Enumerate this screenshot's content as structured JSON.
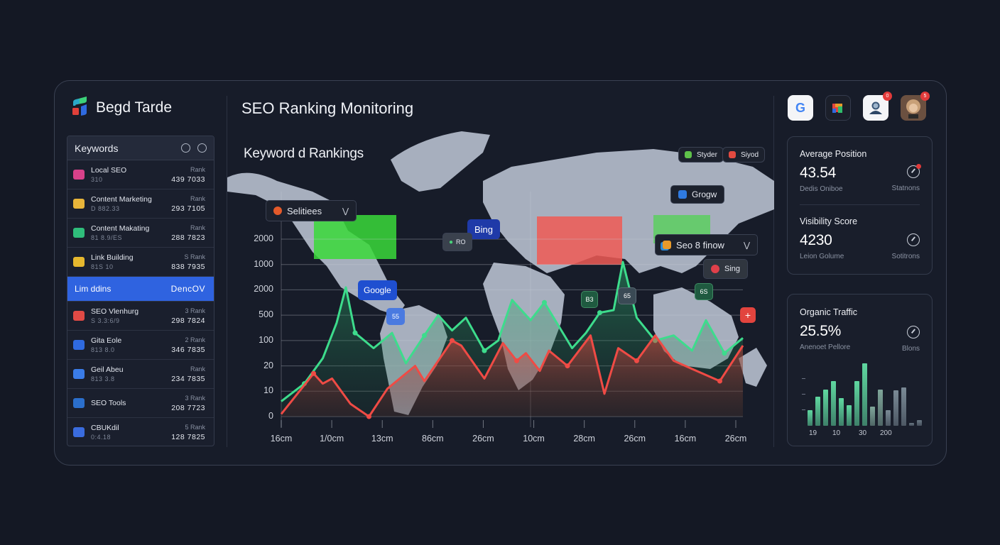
{
  "brand": {
    "name": "Begd Tarde"
  },
  "header": {
    "title": "SEO Ranking Monitoring",
    "icons": [
      {
        "name": "google-app-icon",
        "badge": ""
      },
      {
        "name": "analytics-app-icon",
        "badge": ""
      },
      {
        "name": "user-account-icon",
        "badge": "0"
      },
      {
        "name": "profile-avatar",
        "badge": "5"
      }
    ]
  },
  "keywords_panel": {
    "title": "Keywords",
    "items": [
      {
        "name": "Local SEO",
        "sub": "310",
        "rank_label": "Rank",
        "value": "439 7033",
        "icon_color": "#d8418a"
      },
      {
        "name": "Content Marketing",
        "sub": "D 882.33",
        "rank_label": "Rank",
        "value": "293 7105",
        "icon_color": "#e8b53a"
      },
      {
        "name": "Content Makating",
        "sub": "81 8.9/ES",
        "rank_label": "Rank",
        "value": "288 7823",
        "icon_color": "#2fbd7b"
      },
      {
        "name": "Link Building",
        "sub": "81S 10",
        "rank_label": "S Rank",
        "value": "838 7935",
        "icon_color": "#e6b82e"
      },
      {
        "name": "Lim ddins",
        "sub": "",
        "rank_label": "",
        "value": "DencOV",
        "active": true
      },
      {
        "name": "SEO Vlenhurg",
        "sub": "S 3.3:6/9",
        "rank_label": "3 Rank",
        "value": "298 7824",
        "icon_color": "#e04a45"
      },
      {
        "name": "Gita Eole",
        "sub": "813 8.0",
        "rank_label": "2 Rank",
        "value": "346 7835",
        "icon_color": "#2f6ae0"
      },
      {
        "name": "Geil Abeu",
        "sub": "813 3.8",
        "rank_label": "Rank",
        "value": "234 7835",
        "icon_color": "#3a7ce8"
      },
      {
        "name": "SEO Tools",
        "sub": "",
        "rank_label": "3 Rank",
        "value": "208 7723",
        "icon_color": "#2b6fcc"
      },
      {
        "name": "CBUKdil",
        "sub": "0:4.18",
        "rank_label": "5 Rank",
        "value": "128 7825",
        "icon_color": "#3a6cde"
      }
    ]
  },
  "main": {
    "section_title": "Keyword d Rankings",
    "legend": [
      {
        "label": "Styder",
        "color": "#5fc24a"
      },
      {
        "label": "Siyod",
        "color": "#e24a40"
      }
    ],
    "dropdowns": [
      {
        "label": "Selitiees",
        "icon_color": "#e45a2a"
      },
      {
        "label": "Seo 8 finow",
        "icon_color": "#e89a2a"
      }
    ],
    "map_tags": [
      {
        "label": "Grogw",
        "style": "dark"
      },
      {
        "label": "Bing",
        "style": "navy"
      },
      {
        "label": "RO",
        "style": "dark"
      },
      {
        "label": "Google",
        "style": "blue"
      },
      {
        "label": "Sing",
        "style": "dark"
      },
      {
        "label": "55",
        "style": "blue"
      },
      {
        "label": "B3",
        "style": "green"
      },
      {
        "label": "65",
        "style": "slate"
      },
      {
        "label": "6S",
        "style": "green"
      },
      {
        "label": "+",
        "style": "red"
      }
    ]
  },
  "chart_data": {
    "type": "line",
    "title": "Keyword d Rankings",
    "xlabel": "",
    "ylabel": "",
    "y_tick_labels": [
      "2000",
      "1000",
      "2000",
      "500",
      "100",
      "20",
      "10",
      "0"
    ],
    "x_tick_labels": [
      "16cm",
      "1/0cm",
      "13cm",
      "86cm",
      "26cm",
      "10cm",
      "28cm",
      "26cm",
      "16cm",
      "26cm"
    ],
    "grid": true,
    "series": [
      {
        "name": "Green series",
        "color": "#3ddc8c",
        "points_rank_scale": [
          [
            0,
            0.6
          ],
          [
            0.05,
            1.3
          ],
          [
            0.09,
            2.3
          ],
          [
            0.12,
            3.7
          ],
          [
            0.14,
            5.1
          ],
          [
            0.16,
            3.3
          ],
          [
            0.2,
            2.7
          ],
          [
            0.24,
            3.3
          ],
          [
            0.27,
            2.1
          ],
          [
            0.31,
            3.2
          ],
          [
            0.34,
            4.0
          ],
          [
            0.37,
            3.4
          ],
          [
            0.4,
            3.9
          ],
          [
            0.44,
            2.6
          ],
          [
            0.47,
            3.0
          ],
          [
            0.5,
            4.6
          ],
          [
            0.54,
            3.8
          ],
          [
            0.57,
            4.5
          ],
          [
            0.6,
            3.6
          ],
          [
            0.63,
            2.7
          ],
          [
            0.66,
            3.3
          ],
          [
            0.69,
            4.1
          ],
          [
            0.72,
            4.2
          ],
          [
            0.74,
            6.1
          ],
          [
            0.77,
            3.9
          ],
          [
            0.81,
            3.0
          ],
          [
            0.85,
            3.2
          ],
          [
            0.89,
            2.6
          ],
          [
            0.92,
            3.8
          ],
          [
            0.96,
            2.5
          ],
          [
            1.0,
            3.1
          ]
        ]
      },
      {
        "name": "Red series",
        "color": "#ef4b45",
        "points_rank_scale": [
          [
            0,
            0.1
          ],
          [
            0.07,
            1.7
          ],
          [
            0.09,
            1.3
          ],
          [
            0.11,
            1.5
          ],
          [
            0.15,
            0.5
          ],
          [
            0.19,
            0.0
          ],
          [
            0.23,
            1.1
          ],
          [
            0.29,
            2.0
          ],
          [
            0.31,
            1.4
          ],
          [
            0.37,
            3.0
          ],
          [
            0.39,
            2.8
          ],
          [
            0.44,
            1.5
          ],
          [
            0.48,
            2.9
          ],
          [
            0.51,
            2.2
          ],
          [
            0.53,
            2.5
          ],
          [
            0.56,
            1.8
          ],
          [
            0.58,
            2.6
          ],
          [
            0.62,
            2.0
          ],
          [
            0.67,
            3.2
          ],
          [
            0.7,
            0.9
          ],
          [
            0.73,
            2.7
          ],
          [
            0.77,
            2.2
          ],
          [
            0.81,
            3.2
          ],
          [
            0.85,
            2.2
          ],
          [
            0.9,
            1.8
          ],
          [
            0.95,
            1.4
          ],
          [
            1.0,
            2.8
          ]
        ]
      }
    ],
    "highlight_regions": [
      {
        "label": "North America",
        "color": "#3ed83e"
      },
      {
        "label": "Europe/Middle East",
        "color": "#f05a55"
      },
      {
        "label": "Northeast Asia",
        "color": "#4cd64c"
      }
    ]
  },
  "stats": {
    "average_position": {
      "label": "Average Position",
      "value": "43.54",
      "caption": "Dedis Oniboe",
      "right_caption": "Statnons"
    },
    "visibility_score": {
      "label": "Visibility Score",
      "value": "4230",
      "caption": "Leion Golume",
      "right_caption": "Sotitrons"
    },
    "organic_traffic": {
      "label": "Organic Traffic",
      "value": "25.5%",
      "caption": "Anenoet Pellore",
      "right_caption": "Blons",
      "bar_chart": {
        "type": "bar",
        "x_tick_labels": [
          "19",
          "10",
          "30",
          "200"
        ],
        "values": [
          20,
          38,
          47,
          58,
          36,
          27,
          58,
          81,
          25,
          47,
          20,
          46,
          50,
          4,
          7
        ],
        "colors": [
          "#5fd7a0",
          "#5fd7a0",
          "#5fd7a0",
          "#5fd7a0",
          "#5fd7a0",
          "#5fd7a0",
          "#5fd7a0",
          "#5fd7a0",
          "#7fa69a",
          "#7fa69a",
          "#7a8a96",
          "#7a8a96",
          "#7a8a96",
          "#6a7884",
          "#6a7884"
        ]
      }
    }
  }
}
